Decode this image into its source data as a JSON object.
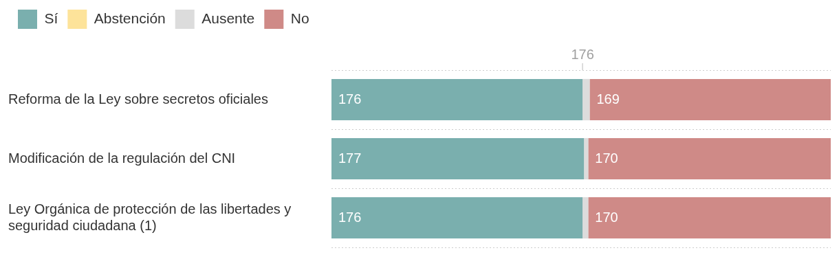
{
  "chart_data": {
    "type": "bar",
    "orientation": "horizontal",
    "stacked": true,
    "categories": [
      "Reforma de la Ley sobre secretos oficiales",
      "Modificación de la regulación del CNI",
      "Ley Orgánica de protección de las libertades y seguridad ciudadana (1)"
    ],
    "series": [
      {
        "name": "Sí",
        "color": "#7aafae",
        "values": [
          176,
          177,
          176
        ],
        "value_labels": [
          "176",
          "177",
          "176"
        ]
      },
      {
        "name": "Abstención",
        "color": "#fde39a",
        "values": [
          0,
          0,
          0
        ]
      },
      {
        "name": "Ausente",
        "color": "#dcdcdc",
        "values": [
          5,
          3,
          4
        ]
      },
      {
        "name": "No",
        "color": "#cf8a87",
        "values": [
          169,
          170,
          170
        ],
        "value_labels": [
          "169",
          "170",
          "170"
        ]
      }
    ],
    "xlim": [
      0,
      350
    ],
    "ref_lines": [
      {
        "axis": "x",
        "value": 176,
        "label": "176"
      }
    ],
    "legend": "top left",
    "grid": "y",
    "tick_labels": "y"
  }
}
